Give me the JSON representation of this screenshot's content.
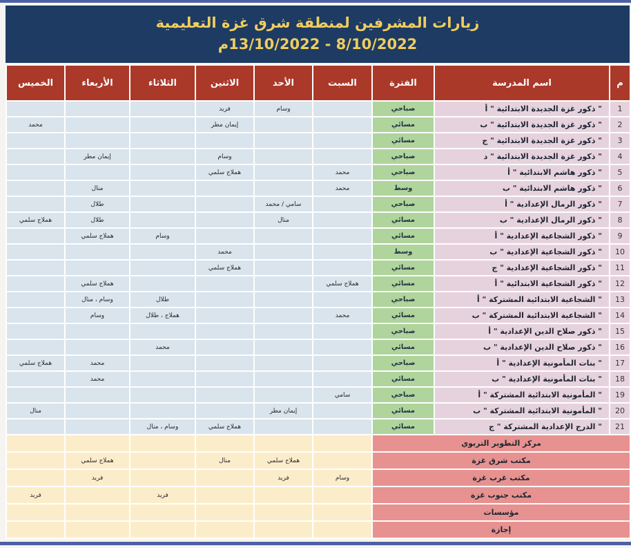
{
  "header": {
    "title_line1": "زيارات المشرفين لمنطقة شرق غزة التعليمية",
    "title_line2": "8/10/2022  -  13/10/2022م"
  },
  "colors": {
    "strip_blue": "#4d60a5",
    "navy_banner": "#1d3b63",
    "title_gold": "#f0cd5e",
    "header_red": "#aa392a",
    "school_pink": "#e6d2dd",
    "period_green": "#afd49c",
    "day_blue": "#d9e4ed",
    "footer_salmon": "#e79290",
    "footer_cream": "#fcedca"
  },
  "table": {
    "headers": {
      "num": "م",
      "school": "اسم المدرسة",
      "period": "الفترة",
      "days": [
        "السبت",
        "الأحد",
        "الاثنين",
        "الثلاثاء",
        "الأربعاء",
        "الخميس"
      ]
    },
    "rows": [
      {
        "num": "1",
        "school": "\" ذكور غزة الجديدة الابتدائية \" أ",
        "period": "صباحي",
        "days": [
          "",
          "وسام",
          "فريد",
          "",
          "",
          ""
        ]
      },
      {
        "num": "2",
        "school": "\" ذكور غزة الجديدة الابتدائية \" ب",
        "period": "مسائي",
        "days": [
          "",
          "",
          "إيمان مطر",
          "",
          "",
          "محمد"
        ]
      },
      {
        "num": "3",
        "school": "\" ذكور غزة الجديدة الابتدائية \" ج",
        "period": "مسائي",
        "days": [
          "",
          "",
          "",
          "",
          "",
          ""
        ]
      },
      {
        "num": "4",
        "school": "\" ذكور غزة الجديدة الابتدائية \" د",
        "period": "صباحي",
        "days": [
          "",
          "",
          "وسام",
          "",
          "إيمان مطر",
          ""
        ]
      },
      {
        "num": "5",
        "school": "\" ذكور هاشم الابتدائية \" أ",
        "period": "صباحي",
        "days": [
          "محمد",
          "",
          "هملاج سلمي",
          "",
          "",
          ""
        ]
      },
      {
        "num": "6",
        "school": "\" ذكور هاشم الابتدائية \" ب",
        "period": "وسط",
        "days": [
          "محمد",
          "",
          "",
          "",
          "منال",
          ""
        ]
      },
      {
        "num": "7",
        "school": "\" ذكور الرمال الإعدادية \" أ",
        "period": "صباحي",
        "days": [
          "",
          "سامي / محمد",
          "",
          "",
          "طلال",
          ""
        ]
      },
      {
        "num": "8",
        "school": "\" ذكور الرمال الإعدادية \" ب",
        "period": "مسائي",
        "days": [
          "",
          "منال",
          "",
          "",
          "طلال",
          "هملاج سلمي"
        ]
      },
      {
        "num": "9",
        "school": "\" ذكور الشجاعية الإعدادية \" أ",
        "period": "مسائي",
        "days": [
          "",
          "",
          "",
          "وسام",
          "هملاج سلمي",
          ""
        ]
      },
      {
        "num": "10",
        "school": "\" ذكور الشجاعية الإعدادية \" ب",
        "period": "وسط",
        "days": [
          "",
          "",
          "محمد",
          "",
          "",
          ""
        ]
      },
      {
        "num": "11",
        "school": "\" ذكور الشجاعية الإعدادية \" ج",
        "period": "مسائي",
        "days": [
          "",
          "",
          "هملاج سلمي",
          "",
          "",
          ""
        ]
      },
      {
        "num": "12",
        "school": "\" ذكور الشجاعية الابتدائية \" أ",
        "period": "مسائي",
        "days": [
          "هملاج سلمي",
          "",
          "",
          "",
          "هملاج سلمي",
          ""
        ]
      },
      {
        "num": "13",
        "school": "\" الشجاعية الابتدائية المشتركة \" أ",
        "period": "صباحي",
        "days": [
          "",
          "",
          "",
          "طلال",
          "وسام ، منال",
          ""
        ]
      },
      {
        "num": "14",
        "school": "\" الشجاعية الابتدائية المشتركة \" ب",
        "period": "مسائي",
        "days": [
          "محمد",
          "",
          "",
          "هملاج ، طلال",
          "وسام",
          ""
        ]
      },
      {
        "num": "15",
        "school": "\" ذكور صلاح الدين الإعدادية \" أ",
        "period": "صباحي",
        "days": [
          "",
          "",
          "",
          "",
          "",
          ""
        ]
      },
      {
        "num": "16",
        "school": "\" ذكور صلاح الدين الإعدادية \" ب",
        "period": "مسائي",
        "days": [
          "",
          "",
          "",
          "محمد",
          "",
          ""
        ]
      },
      {
        "num": "17",
        "school": "\" بنات المأمونية الإعدادية \" أ",
        "period": "صباحي",
        "days": [
          "",
          "",
          "",
          "",
          "محمد",
          "هملاج سلمي"
        ]
      },
      {
        "num": "18",
        "school": "\" بنات المأمونية الإعدادية \" ب",
        "period": "مسائي",
        "days": [
          "",
          "",
          "",
          "",
          "محمد",
          ""
        ]
      },
      {
        "num": "19",
        "school": "\" المأمونية الابتدائية المشتركة \" أ",
        "period": "صباحي",
        "days": [
          "سامي",
          "",
          "",
          "",
          "",
          ""
        ]
      },
      {
        "num": "20",
        "school": "\" المأمونية الابتدائية المشتركة \" ب",
        "period": "مسائي",
        "days": [
          "",
          "إيمان مطر",
          "",
          "",
          "",
          "منال"
        ]
      },
      {
        "num": "21",
        "school": "\" الدرج الإعدادية المشتركة \" ج",
        "period": "مسائي",
        "days": [
          "",
          "",
          "هملاج سلمي",
          "وسام ، منال",
          "",
          ""
        ]
      }
    ],
    "footer_rows": [
      {
        "label": "مركز التطوير التربوي",
        "days": [
          "",
          "",
          "",
          "",
          "",
          ""
        ]
      },
      {
        "label": "مكتب شرق غزة",
        "days": [
          "",
          "هملاج سلمي",
          "منال",
          "",
          "هملاج سلمي",
          ""
        ]
      },
      {
        "label": "مكتب غرب غزة",
        "days": [
          "وسام",
          "فريد",
          "",
          "",
          "فريد",
          ""
        ]
      },
      {
        "label": "مكتب جنوب غزة",
        "days": [
          "",
          "",
          "",
          "فريد",
          "",
          "فريد"
        ]
      },
      {
        "label": "مؤسسات",
        "days": [
          "",
          "",
          "",
          "",
          "",
          ""
        ]
      },
      {
        "label": "إجازة",
        "days": [
          "",
          "",
          "",
          "",
          "",
          ""
        ]
      }
    ]
  }
}
